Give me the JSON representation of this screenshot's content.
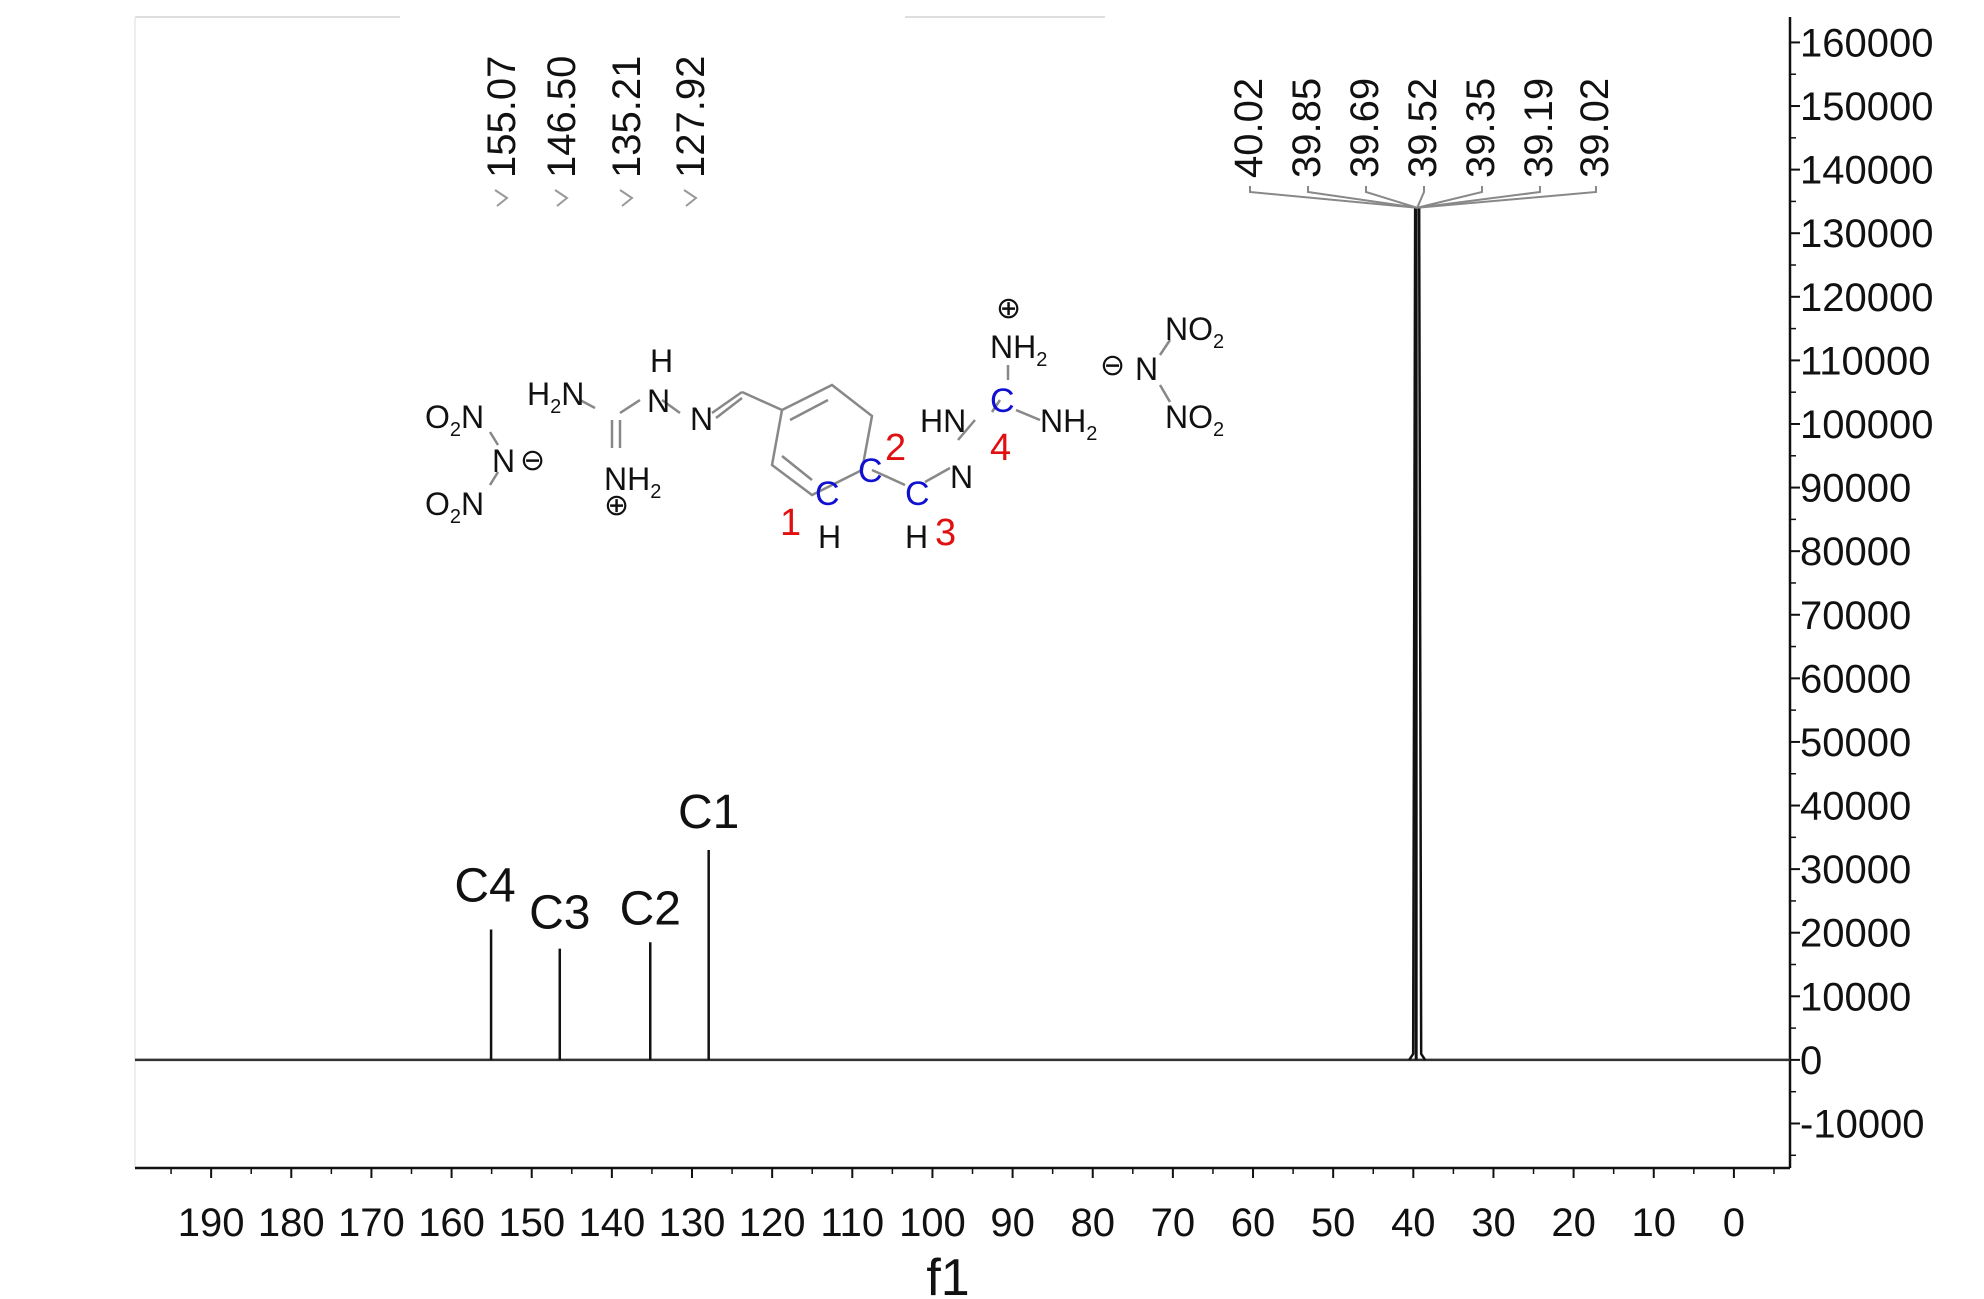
{
  "chart_data": {
    "type": "line",
    "xlabel": "f1",
    "xlim": [
      199.5,
      -7
    ],
    "ylim": [
      -17000,
      164000
    ],
    "x_ticks": [
      190,
      180,
      170,
      160,
      150,
      140,
      130,
      120,
      110,
      100,
      90,
      80,
      70,
      60,
      50,
      40,
      30,
      20,
      10,
      0
    ],
    "y_ticks": [
      160000,
      150000,
      140000,
      130000,
      120000,
      110000,
      100000,
      90000,
      80000,
      70000,
      60000,
      50000,
      40000,
      30000,
      20000,
      10000,
      0,
      -10000
    ],
    "grid": false,
    "series": [
      {
        "peaks": [
          {
            "x": 155.07,
            "y": 20500
          },
          {
            "x": 146.5,
            "y": 17500
          },
          {
            "x": 135.21,
            "y": 18500
          },
          {
            "x": 127.92,
            "y": 33000
          },
          {
            "x": 39.52,
            "y": 134000
          }
        ]
      }
    ],
    "peak_labels_left": [
      "155.07",
      "146.50",
      "135.21",
      "127.92"
    ],
    "peak_labels_right": [
      "40.02",
      "39.85",
      "39.69",
      "39.52",
      "39.35",
      "39.19",
      "39.02"
    ],
    "annotations": [
      {
        "text": "C4",
        "x": 155.07
      },
      {
        "text": "C3",
        "x": 146.5
      },
      {
        "text": "C2",
        "x": 135.21
      },
      {
        "text": "C1",
        "x": 127.92
      }
    ]
  },
  "structure": {
    "o2n_left_top": "O",
    "o2n_left_bottom": "O",
    "n_text": "N",
    "h_text": "H",
    "hn_text": "HN",
    "no_text": "NO",
    "two": "2",
    "c_text": "C",
    "nh_text": "NH",
    "h2n_text": "H",
    "minus": "⊖",
    "plus": "⊕",
    "num1": "1",
    "num2": "2",
    "num3": "3",
    "num4": "4"
  }
}
